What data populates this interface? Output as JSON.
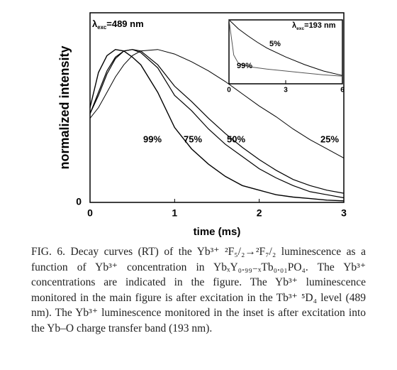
{
  "chart_data": [
    {
      "type": "line",
      "x_label": "time (ms)",
      "y_label": "normalized intensity",
      "annotation": {
        "symbol": "λ",
        "subscript": "exc",
        "text": "=489 nm"
      },
      "x": [
        0,
        0.1,
        0.2,
        0.3,
        0.4,
        0.5,
        0.6,
        0.8,
        1.0,
        1.2,
        1.4,
        1.6,
        1.8,
        2.0,
        2.2,
        2.4,
        2.6,
        2.8,
        3.0
      ],
      "xlim": [
        0,
        3
      ],
      "xticks": [
        0,
        1,
        2,
        3
      ],
      "ylim": [
        0,
        1.24
      ],
      "yticks": [
        0
      ],
      "series": [
        {
          "name": "99%",
          "color": "#000000",
          "values": [
            0.62,
            0.85,
            0.96,
            1.0,
            0.99,
            0.95,
            0.9,
            0.72,
            0.49,
            0.35,
            0.25,
            0.17,
            0.11,
            0.08,
            0.05,
            0.035,
            0.025,
            0.015,
            0.01
          ]
        },
        {
          "name": "75%",
          "color": "#000000",
          "values": [
            0.58,
            0.72,
            0.86,
            0.95,
            0.99,
            1.0,
            0.98,
            0.88,
            0.7,
            0.6,
            0.48,
            0.38,
            0.3,
            0.22,
            0.16,
            0.11,
            0.07,
            0.05,
            0.03
          ]
        },
        {
          "name": "50%",
          "color": "#000000",
          "values": [
            0.58,
            0.7,
            0.84,
            0.94,
            0.99,
            1.0,
            0.99,
            0.9,
            0.76,
            0.66,
            0.55,
            0.45,
            0.36,
            0.28,
            0.21,
            0.15,
            0.11,
            0.08,
            0.06
          ]
        },
        {
          "name": "25%",
          "color": "#000000",
          "values": [
            0.55,
            0.62,
            0.72,
            0.82,
            0.9,
            0.96,
            0.99,
            1.0,
            0.97,
            0.92,
            0.86,
            0.79,
            0.71,
            0.63,
            0.56,
            0.48,
            0.41,
            0.35,
            0.29
          ]
        }
      ]
    },
    {
      "type": "line",
      "annotation": {
        "symbol": "λ",
        "subscript": "exc",
        "text": "=193 nm"
      },
      "x": [
        0,
        0.25,
        0.5,
        1,
        1.5,
        2,
        3,
        4,
        5,
        6
      ],
      "xlim": [
        0,
        6
      ],
      "xticks": [
        0,
        3,
        6
      ],
      "ylim": [
        0,
        1
      ],
      "series": [
        {
          "name": "5%",
          "color": "#000000",
          "values": [
            1,
            0.93,
            0.86,
            0.75,
            0.65,
            0.56,
            0.42,
            0.3,
            0.2,
            0.13
          ]
        },
        {
          "name": "99%",
          "color": "#555555",
          "values": [
            1,
            0.45,
            0.32,
            0.27,
            0.25,
            0.23,
            0.2,
            0.17,
            0.14,
            0.12
          ]
        }
      ]
    }
  ],
  "caption": "FIG. 6. Decay curves (RT) of the Yb³⁺ ²F₅/₂→²F₇/₂ luminescence as a function of Yb³⁺ concentration in YbₓY₀.₉₉₋ₓTb₀.₀₁PO₄. The Yb³⁺ concentrations are indicated in the figure. The Yb³⁺ luminescence monitored in the main figure is after excitation in the Tb³⁺ ⁵D₄ level (489 nm). The Yb³⁺ luminescence monitored in the inset is after excitation into the Yb–O charge transfer band (193 nm)."
}
